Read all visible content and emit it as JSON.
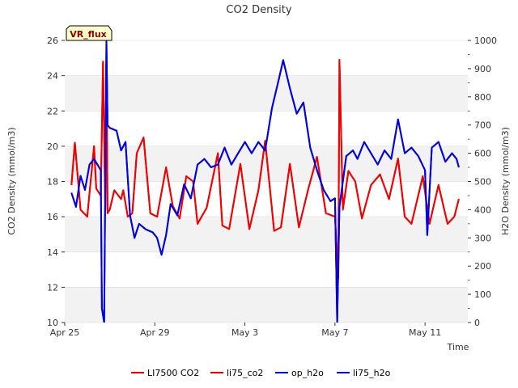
{
  "chart_data": {
    "type": "line",
    "title": "CO2 Density",
    "xlabel": "Time",
    "ylabel_left": "CO2 Density (mmol/m3)",
    "ylabel_right": "H2O Density (mmol/m3)",
    "badge": "VR_flux",
    "x_start": "2023-04-25",
    "x_ticks": [
      {
        "label": "Apr 25",
        "day": 0
      },
      {
        "label": "Apr 29",
        "day": 4
      },
      {
        "label": "May 3",
        "day": 8
      },
      {
        "label": "May 7",
        "day": 12
      },
      {
        "label": "May 11",
        "day": 16
      }
    ],
    "xlim_days": [
      0,
      17.9
    ],
    "ylim_left": [
      10,
      26
    ],
    "yticks_left": [
      10,
      12,
      14,
      16,
      18,
      20,
      22,
      24,
      26
    ],
    "ylim_right": [
      0,
      1000
    ],
    "yticks_right": [
      0,
      100,
      200,
      300,
      400,
      500,
      600,
      700,
      800,
      900,
      1000
    ],
    "grid": "horizontal bands",
    "legend_position": "bottom",
    "colors": {
      "red": "#ee0000",
      "blue": "#0000dd",
      "band": "#f2f2f2"
    },
    "series": [
      {
        "name": "LI7500 CO2",
        "axis": "left",
        "color": "#ee0000",
        "points": [
          [
            0.3,
            17.8
          ],
          [
            0.45,
            20.2
          ],
          [
            0.7,
            16.4
          ],
          [
            1.0,
            16.0
          ],
          [
            1.3,
            20.0
          ],
          [
            1.4,
            17.6
          ],
          [
            1.6,
            17.2
          ],
          [
            1.7,
            24.8
          ],
          [
            1.8,
            16.4
          ],
          [
            1.85,
            25.0
          ],
          [
            1.9,
            16.2
          ],
          [
            2.0,
            16.4
          ],
          [
            2.2,
            17.5
          ],
          [
            2.5,
            17.0
          ],
          [
            2.6,
            17.5
          ],
          [
            2.8,
            16.0
          ],
          [
            3.0,
            16.2
          ],
          [
            3.2,
            19.6
          ],
          [
            3.5,
            20.5
          ],
          [
            3.8,
            16.2
          ],
          [
            4.1,
            16.0
          ],
          [
            4.5,
            18.8
          ],
          [
            4.8,
            16.6
          ],
          [
            5.1,
            15.9
          ],
          [
            5.4,
            18.3
          ],
          [
            5.7,
            18.0
          ],
          [
            5.9,
            15.6
          ],
          [
            6.3,
            16.5
          ],
          [
            6.8,
            19.6
          ],
          [
            7.0,
            15.5
          ],
          [
            7.3,
            15.3
          ],
          [
            7.8,
            19.0
          ],
          [
            8.2,
            15.3
          ],
          [
            8.6,
            17.5
          ],
          [
            8.9,
            20.3
          ],
          [
            9.3,
            15.2
          ],
          [
            9.6,
            15.4
          ],
          [
            10.0,
            19.0
          ],
          [
            10.4,
            15.4
          ],
          [
            10.8,
            17.5
          ],
          [
            11.2,
            19.4
          ],
          [
            11.6,
            16.2
          ],
          [
            12.0,
            16.0
          ],
          [
            12.15,
            12.5
          ],
          [
            12.2,
            24.9
          ],
          [
            12.35,
            16.4
          ],
          [
            12.6,
            18.6
          ],
          [
            12.9,
            18.0
          ],
          [
            13.2,
            15.9
          ],
          [
            13.6,
            17.8
          ],
          [
            14.0,
            18.4
          ],
          [
            14.4,
            17.0
          ],
          [
            14.8,
            19.3
          ],
          [
            15.1,
            16.0
          ],
          [
            15.4,
            15.6
          ],
          [
            15.9,
            18.3
          ],
          [
            16.2,
            15.6
          ],
          [
            16.6,
            17.8
          ],
          [
            17.0,
            15.6
          ],
          [
            17.3,
            16.0
          ],
          [
            17.5,
            17.0
          ]
        ]
      },
      {
        "name": "li75_co2",
        "axis": "left",
        "color": "#ee0000",
        "points": [
          [
            0.3,
            17.8
          ],
          [
            0.45,
            20.2
          ],
          [
            0.7,
            16.4
          ],
          [
            1.0,
            16.0
          ],
          [
            1.3,
            20.0
          ],
          [
            1.4,
            17.6
          ],
          [
            1.6,
            17.2
          ],
          [
            1.7,
            24.8
          ],
          [
            1.8,
            16.4
          ],
          [
            1.85,
            25.0
          ],
          [
            1.9,
            16.2
          ],
          [
            2.0,
            16.4
          ],
          [
            2.2,
            17.5
          ],
          [
            2.5,
            17.0
          ],
          [
            2.6,
            17.5
          ],
          [
            2.8,
            16.0
          ],
          [
            3.0,
            16.2
          ],
          [
            3.2,
            19.6
          ],
          [
            3.5,
            20.5
          ],
          [
            3.8,
            16.2
          ],
          [
            4.1,
            16.0
          ],
          [
            4.5,
            18.8
          ],
          [
            4.8,
            16.6
          ],
          [
            5.1,
            15.9
          ],
          [
            5.4,
            18.3
          ],
          [
            5.7,
            18.0
          ],
          [
            5.9,
            15.6
          ],
          [
            6.3,
            16.5
          ],
          [
            6.8,
            19.6
          ],
          [
            7.0,
            15.5
          ],
          [
            7.3,
            15.3
          ],
          [
            7.8,
            19.0
          ],
          [
            8.2,
            15.3
          ],
          [
            8.6,
            17.5
          ],
          [
            8.9,
            20.3
          ],
          [
            9.3,
            15.2
          ],
          [
            9.6,
            15.4
          ],
          [
            10.0,
            19.0
          ],
          [
            10.4,
            15.4
          ],
          [
            10.8,
            17.5
          ],
          [
            11.2,
            19.4
          ],
          [
            11.6,
            16.2
          ],
          [
            12.0,
            16.0
          ],
          [
            12.15,
            12.5
          ],
          [
            12.2,
            24.9
          ],
          [
            12.35,
            16.4
          ],
          [
            12.6,
            18.6
          ],
          [
            12.9,
            18.0
          ],
          [
            13.2,
            15.9
          ],
          [
            13.6,
            17.8
          ],
          [
            14.0,
            18.4
          ],
          [
            14.4,
            17.0
          ],
          [
            14.8,
            19.3
          ],
          [
            15.1,
            16.0
          ],
          [
            15.4,
            15.6
          ],
          [
            15.9,
            18.3
          ],
          [
            16.2,
            15.6
          ],
          [
            16.6,
            17.8
          ],
          [
            17.0,
            15.6
          ],
          [
            17.3,
            16.0
          ],
          [
            17.5,
            17.0
          ]
        ]
      },
      {
        "name": "op_h2o",
        "axis": "right",
        "color": "#0000dd",
        "points": [
          [
            0.3,
            460
          ],
          [
            0.5,
            410
          ],
          [
            0.7,
            520
          ],
          [
            0.9,
            470
          ],
          [
            1.1,
            560
          ],
          [
            1.3,
            580
          ],
          [
            1.6,
            540
          ],
          [
            1.65,
            50
          ],
          [
            1.75,
            0
          ],
          [
            1.85,
            1000
          ],
          [
            1.9,
            700
          ],
          [
            2.0,
            690
          ],
          [
            2.3,
            680
          ],
          [
            2.5,
            610
          ],
          [
            2.7,
            640
          ],
          [
            2.9,
            380
          ],
          [
            3.1,
            300
          ],
          [
            3.3,
            350
          ],
          [
            3.6,
            330
          ],
          [
            3.9,
            320
          ],
          [
            4.1,
            300
          ],
          [
            4.3,
            240
          ],
          [
            4.5,
            310
          ],
          [
            4.7,
            420
          ],
          [
            5.0,
            380
          ],
          [
            5.3,
            490
          ],
          [
            5.6,
            440
          ],
          [
            5.9,
            560
          ],
          [
            6.2,
            580
          ],
          [
            6.5,
            550
          ],
          [
            6.8,
            560
          ],
          [
            7.1,
            620
          ],
          [
            7.4,
            560
          ],
          [
            7.7,
            600
          ],
          [
            8.0,
            640
          ],
          [
            8.3,
            600
          ],
          [
            8.6,
            640
          ],
          [
            8.9,
            610
          ],
          [
            9.2,
            760
          ],
          [
            9.5,
            860
          ],
          [
            9.7,
            930
          ],
          [
            10.0,
            830
          ],
          [
            10.3,
            740
          ],
          [
            10.6,
            780
          ],
          [
            10.9,
            620
          ],
          [
            11.2,
            540
          ],
          [
            11.5,
            470
          ],
          [
            11.8,
            430
          ],
          [
            12.0,
            440
          ],
          [
            12.1,
            0
          ],
          [
            12.2,
            410
          ],
          [
            12.5,
            590
          ],
          [
            12.8,
            610
          ],
          [
            13.0,
            580
          ],
          [
            13.3,
            640
          ],
          [
            13.6,
            600
          ],
          [
            13.9,
            560
          ],
          [
            14.2,
            610
          ],
          [
            14.5,
            580
          ],
          [
            14.8,
            720
          ],
          [
            15.1,
            600
          ],
          [
            15.4,
            620
          ],
          [
            15.7,
            590
          ],
          [
            16.0,
            540
          ],
          [
            16.1,
            310
          ],
          [
            16.3,
            620
          ],
          [
            16.6,
            640
          ],
          [
            16.9,
            570
          ],
          [
            17.2,
            600
          ],
          [
            17.4,
            580
          ],
          [
            17.5,
            550
          ]
        ]
      },
      {
        "name": "li75_h2o",
        "axis": "right",
        "color": "#0000dd",
        "points": [
          [
            0.3,
            460
          ],
          [
            0.5,
            410
          ],
          [
            0.7,
            520
          ],
          [
            0.9,
            470
          ],
          [
            1.1,
            560
          ],
          [
            1.3,
            580
          ],
          [
            1.6,
            540
          ],
          [
            1.65,
            50
          ],
          [
            1.75,
            0
          ],
          [
            1.85,
            1000
          ],
          [
            1.9,
            700
          ],
          [
            2.0,
            690
          ],
          [
            2.3,
            680
          ],
          [
            2.5,
            610
          ],
          [
            2.7,
            640
          ],
          [
            2.9,
            380
          ],
          [
            3.1,
            300
          ],
          [
            3.3,
            350
          ],
          [
            3.6,
            330
          ],
          [
            3.9,
            320
          ],
          [
            4.1,
            300
          ],
          [
            4.3,
            240
          ],
          [
            4.5,
            310
          ],
          [
            4.7,
            420
          ],
          [
            5.0,
            380
          ],
          [
            5.3,
            490
          ],
          [
            5.6,
            440
          ],
          [
            5.9,
            560
          ],
          [
            6.2,
            580
          ],
          [
            6.5,
            550
          ],
          [
            6.8,
            560
          ],
          [
            7.1,
            620
          ],
          [
            7.4,
            560
          ],
          [
            7.7,
            600
          ],
          [
            8.0,
            640
          ],
          [
            8.3,
            600
          ],
          [
            8.6,
            640
          ],
          [
            8.9,
            610
          ],
          [
            9.2,
            760
          ],
          [
            9.5,
            860
          ],
          [
            9.7,
            930
          ],
          [
            10.0,
            830
          ],
          [
            10.3,
            740
          ],
          [
            10.6,
            780
          ],
          [
            10.9,
            620
          ],
          [
            11.2,
            540
          ],
          [
            11.5,
            470
          ],
          [
            11.8,
            430
          ],
          [
            12.0,
            440
          ],
          [
            12.1,
            0
          ],
          [
            12.2,
            410
          ],
          [
            12.5,
            590
          ],
          [
            12.8,
            610
          ],
          [
            13.0,
            580
          ],
          [
            13.3,
            640
          ],
          [
            13.6,
            600
          ],
          [
            13.9,
            560
          ],
          [
            14.2,
            610
          ],
          [
            14.5,
            580
          ],
          [
            14.8,
            720
          ],
          [
            15.1,
            600
          ],
          [
            15.4,
            620
          ],
          [
            15.7,
            590
          ],
          [
            16.0,
            540
          ],
          [
            16.1,
            310
          ],
          [
            16.3,
            620
          ],
          [
            16.6,
            640
          ],
          [
            16.9,
            570
          ],
          [
            17.2,
            600
          ],
          [
            17.4,
            580
          ],
          [
            17.5,
            550
          ]
        ]
      }
    ]
  }
}
